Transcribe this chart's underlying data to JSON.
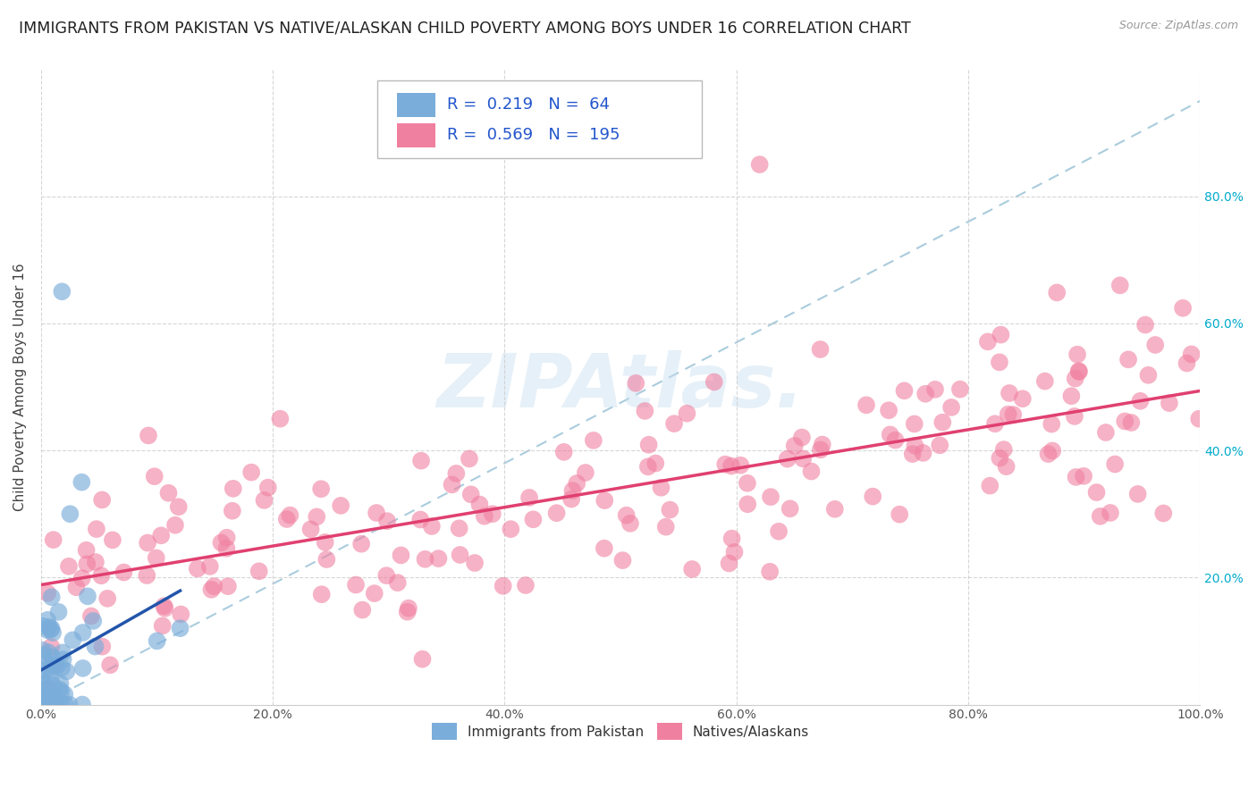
{
  "title": "IMMIGRANTS FROM PAKISTAN VS NATIVE/ALASKAN CHILD POVERTY AMONG BOYS UNDER 16 CORRELATION CHART",
  "source": "Source: ZipAtlas.com",
  "ylabel": "Child Poverty Among Boys Under 16",
  "color_pakistan": "#7aadda",
  "color_native": "#f080a0",
  "trend_color_pakistan": "#2255aa",
  "trend_color_native": "#e04070",
  "trend_dashed_color": "#aaccdd",
  "background_color": "#ffffff",
  "grid_color": "#cccccc",
  "title_fontsize": 12.5,
  "axis_label_fontsize": 11,
  "tick_fontsize": 10,
  "legend_fontsize": 13,
  "pakistan_R": 0.219,
  "pakistan_N": 64,
  "native_R": 0.569,
  "native_N": 195,
  "right_tick_color": "#00aacc"
}
